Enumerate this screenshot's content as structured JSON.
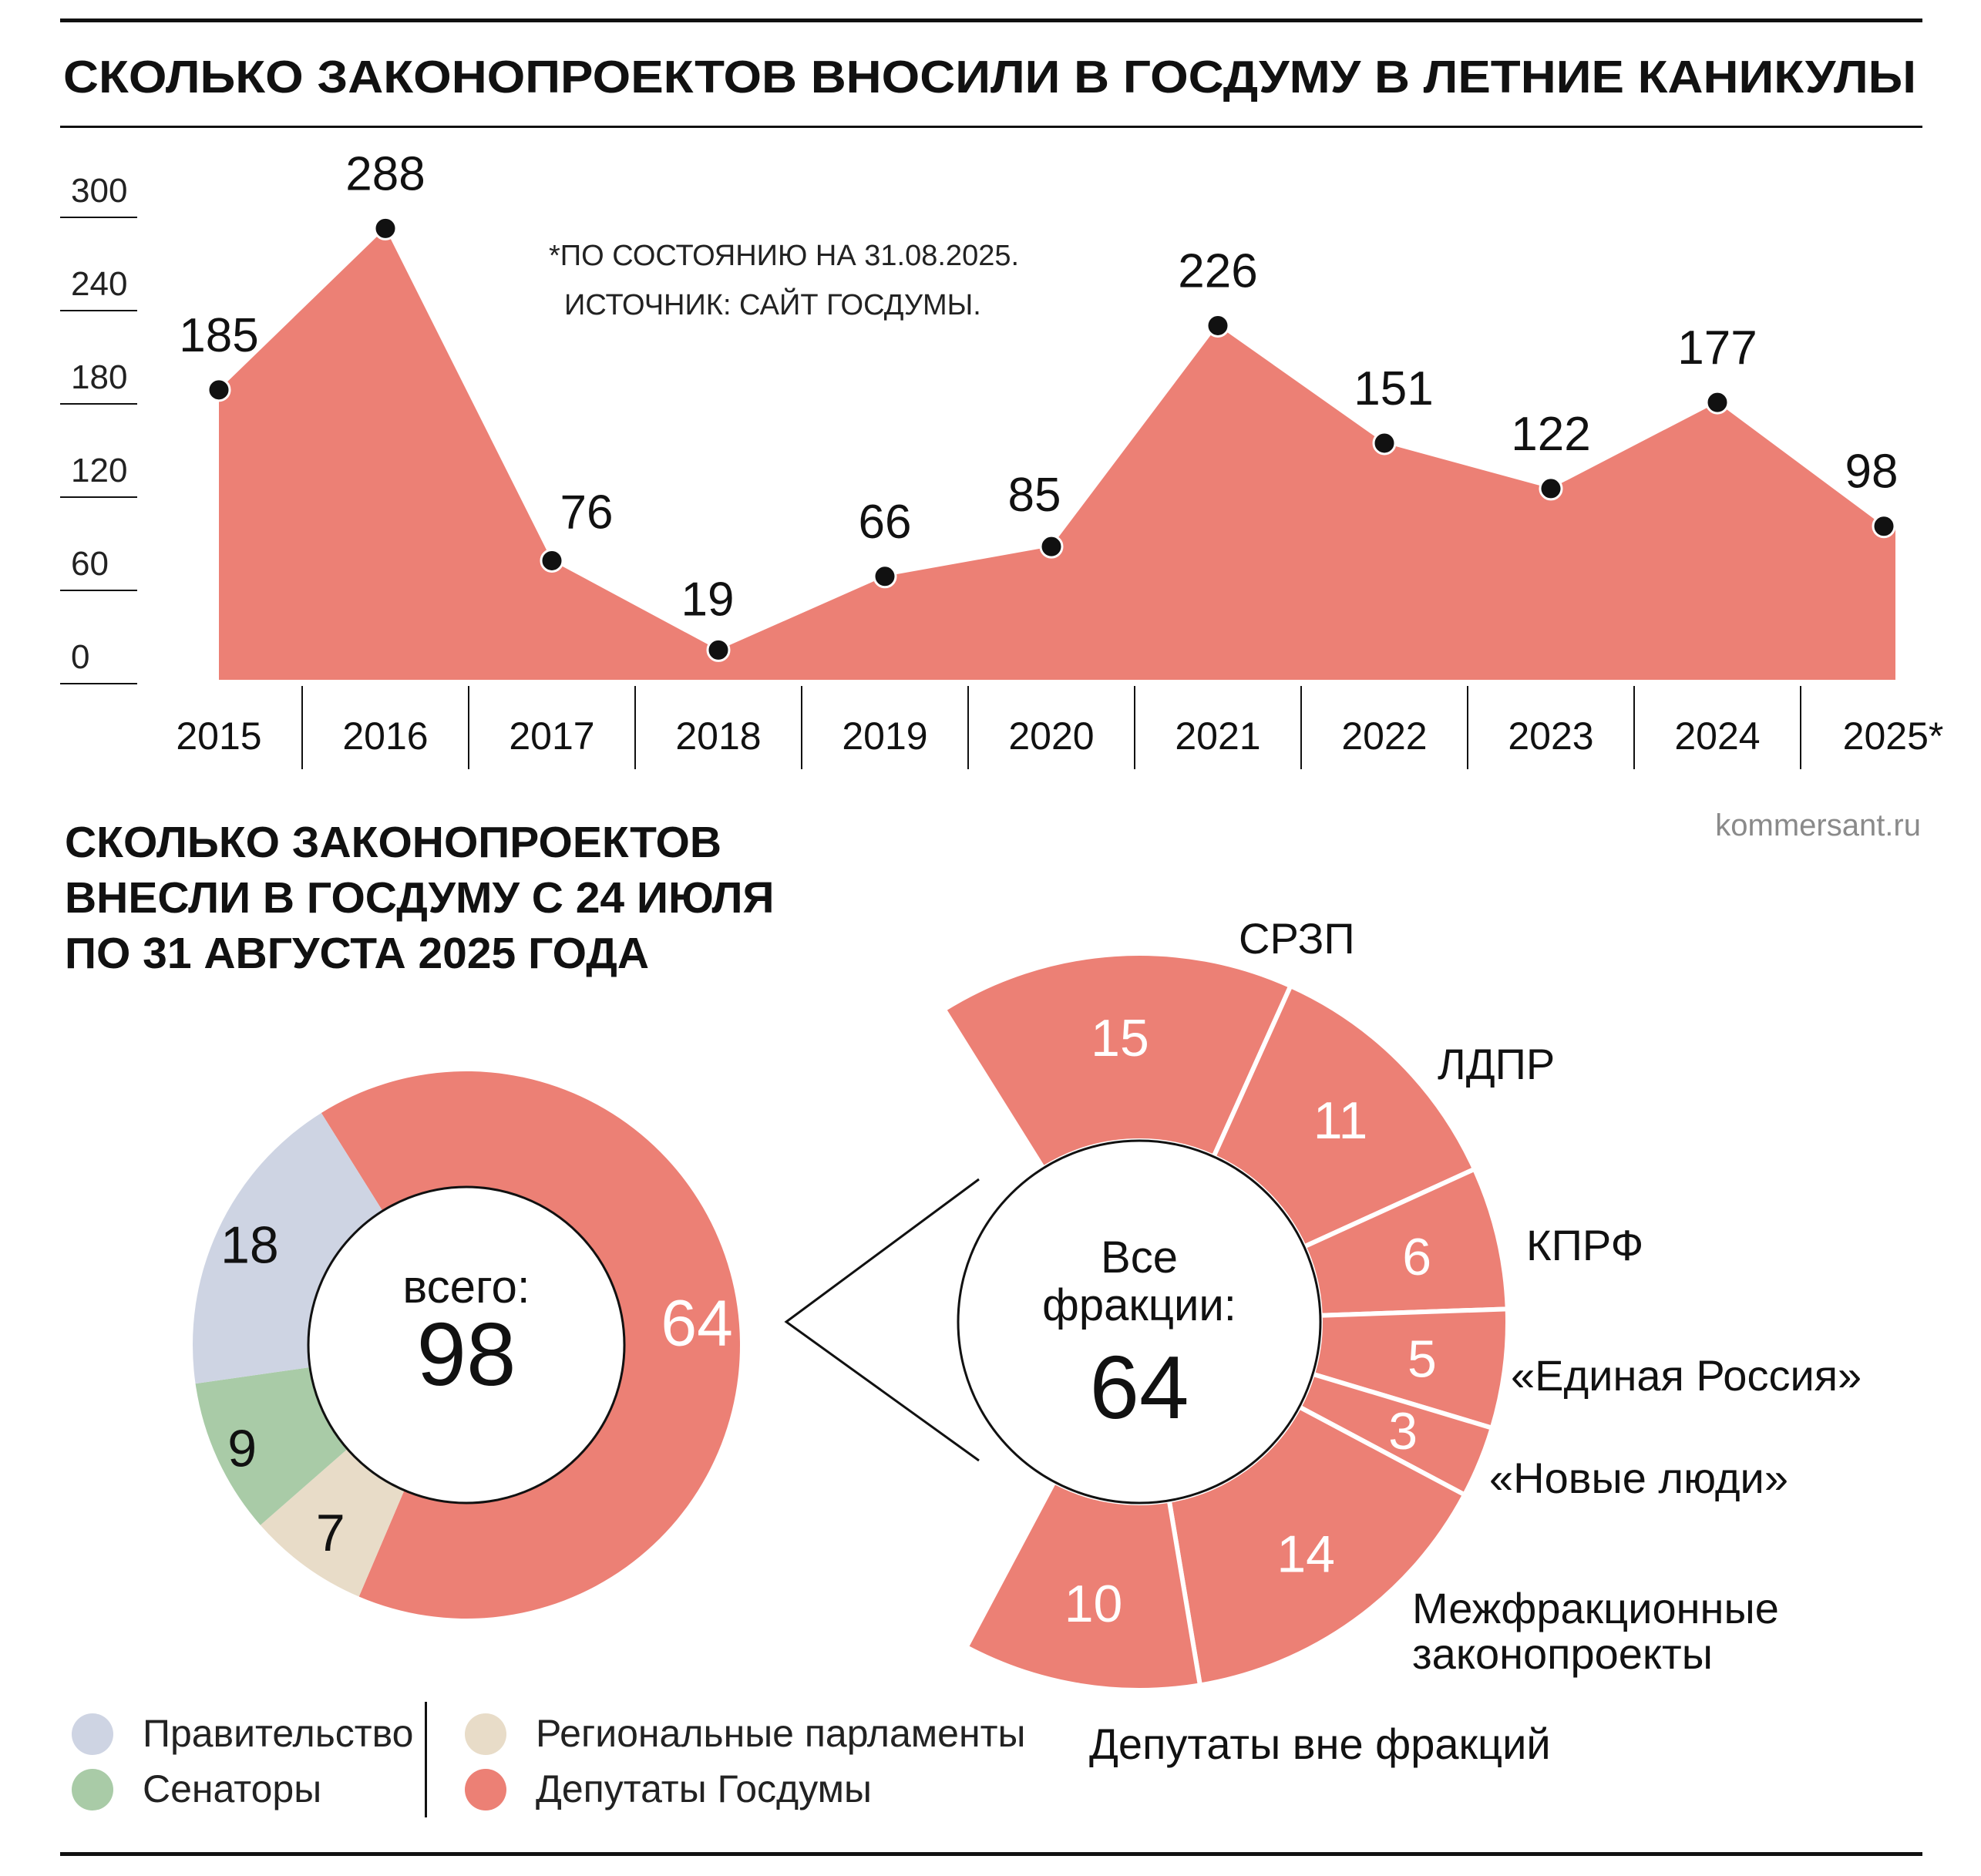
{
  "header": {
    "title": "СКОЛЬКО ЗАКОНОПРОЕКТОВ ВНОСИЛИ В ГОСДУМУ В ЛЕТНИЕ КАНИКУЛЫ",
    "note_line1": "*ПО СОСТОЯНИЮ НА 31.08.2025.",
    "note_line2": "ИСТОЧНИК: САЙТ ГОСДУМЫ.",
    "source_site": "kommersant.ru"
  },
  "section2": {
    "title_lines": [
      "СКОЛЬКО ЗАКОНОПРОЕКТОВ",
      "ВНЕСЛИ В ГОСДУМУ С 24 ИЮЛЯ",
      "ПО 31 АВГУСТА 2025 ГОДА"
    ]
  },
  "colors": {
    "area": "#ec8075",
    "gov": "#ced4e3",
    "senators": "#a9cba7",
    "regional": "#e8dcc8",
    "deputies": "#ec8075",
    "ink": "#111111"
  },
  "chart_data": [
    {
      "type": "area",
      "title": "СКОЛЬКО ЗАКОНОПРОЕКТОВ ВНОСИЛИ В ГОСДУМУ В ЛЕТНИЕ КАНИКУЛЫ",
      "categories": [
        "2015",
        "2016",
        "2017",
        "2018",
        "2019",
        "2020",
        "2021",
        "2022",
        "2023",
        "2024",
        "2025*"
      ],
      "values": [
        185,
        288,
        76,
        19,
        66,
        85,
        226,
        151,
        122,
        177,
        98
      ],
      "y_ticks": [
        "300",
        "240",
        "180",
        "120",
        "60",
        "0"
      ],
      "ylim": [
        0,
        300
      ],
      "grid": false
    },
    {
      "type": "pie",
      "title_lines": [
        "СКОЛЬКО ЗАКОНОПРОЕКТОВ",
        "ВНЕСЛИ В ГОСДУМУ С 24 ИЮЛЯ",
        "ПО 31 АВГУСТА 2025 ГОДА"
      ],
      "center_label": "всего:",
      "total": "98",
      "slices": [
        {
          "name": "Депутаты Госдумы",
          "value": 64,
          "color_key": "deputies"
        },
        {
          "name": "Региональные парламенты",
          "value": 7,
          "color_key": "regional"
        },
        {
          "name": "Сенаторы",
          "value": 9,
          "color_key": "senators"
        },
        {
          "name": "Правительство",
          "value": 18,
          "color_key": "gov"
        }
      ],
      "legend": {
        "placement": "bottom-left",
        "columns": [
          [
            "Правительство",
            "Сенаторы"
          ],
          [
            "Региональные парламенты",
            "Депутаты Госдумы"
          ]
        ]
      }
    },
    {
      "type": "pie",
      "center_label_lines": [
        "Все",
        "фракции:"
      ],
      "total": "64",
      "slices": [
        {
          "name": "СРЗП",
          "value": 15
        },
        {
          "name": "ЛДПР",
          "value": 11
        },
        {
          "name": "КПРФ",
          "value": 6
        },
        {
          "name": "«Единая Россия»",
          "value": 5
        },
        {
          "name": "«Новые люди»",
          "value": 3
        },
        {
          "name_lines": [
            "Межфракционные",
            "законопроекты"
          ],
          "value": 14
        },
        {
          "name": "Депутаты вне фракций",
          "value": 10
        }
      ]
    }
  ]
}
